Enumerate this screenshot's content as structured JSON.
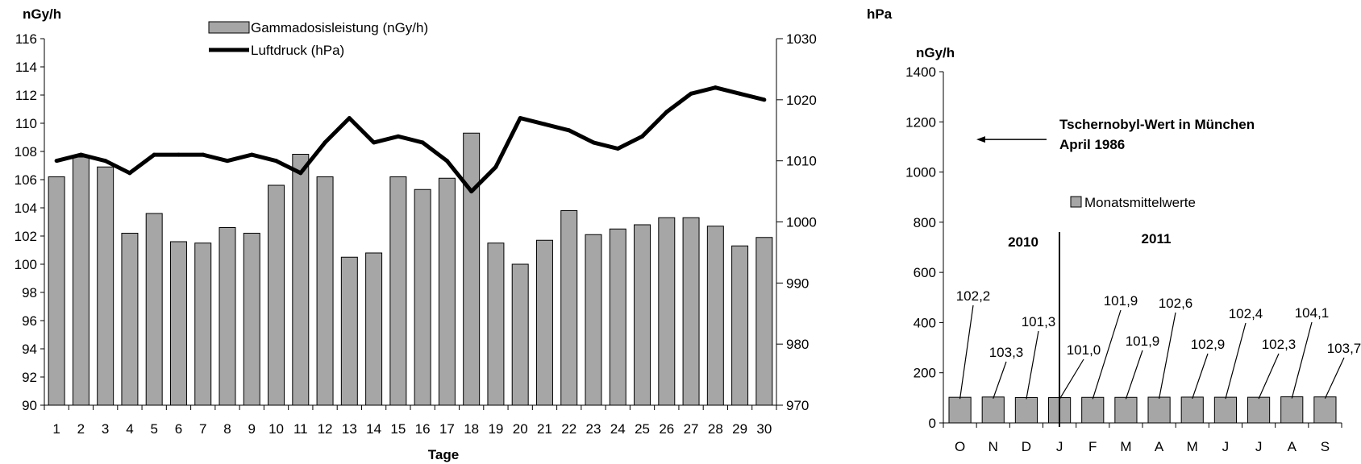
{
  "colors": {
    "bar": "#a6a6a6",
    "bar_stroke": "#000000",
    "line": "#000000"
  },
  "chart_data": [
    {
      "type": "bar+line",
      "xlabel": "Tage",
      "ylabel_left": "nGy/h",
      "ylabel_right": "hPa",
      "ylim_left": [
        90,
        116
      ],
      "ylim_right": [
        970,
        1030
      ],
      "yticks_left": [
        "90",
        "92",
        "94",
        "96",
        "98",
        "100",
        "102",
        "104",
        "106",
        "108",
        "110",
        "112",
        "114",
        "116"
      ],
      "yticks_right": [
        "970",
        "980",
        "990",
        "1000",
        "1010",
        "1020",
        "1030"
      ],
      "legend": [
        "Gammadosisleistung (nGy/h)",
        "Luftdruck (hPa)"
      ],
      "legend_position": "top-center",
      "categories": [
        "1",
        "2",
        "3",
        "4",
        "5",
        "6",
        "7",
        "8",
        "9",
        "10",
        "11",
        "12",
        "13",
        "14",
        "15",
        "16",
        "17",
        "18",
        "19",
        "20",
        "21",
        "22",
        "23",
        "24",
        "25",
        "26",
        "27",
        "28",
        "29",
        "30"
      ],
      "series": [
        {
          "name": "Gammadosisleistung (nGy/h)",
          "kind": "bar",
          "axis": "left",
          "values": [
            106.2,
            107.6,
            106.9,
            102.2,
            103.6,
            101.6,
            101.5,
            102.6,
            102.2,
            105.6,
            107.8,
            106.2,
            100.5,
            100.8,
            106.2,
            105.3,
            106.1,
            109.3,
            101.5,
            100.0,
            101.7,
            103.8,
            102.1,
            102.5,
            102.8,
            103.3,
            103.3,
            102.7,
            101.3,
            101.9
          ]
        },
        {
          "name": "Luftdruck (hPa)",
          "kind": "line",
          "axis": "right",
          "values": [
            1010,
            1011,
            1010,
            1008,
            1011,
            1011,
            1011,
            1010,
            1011,
            1010,
            1008,
            1013,
            1017,
            1013,
            1014,
            1013,
            1010,
            1005,
            1009,
            1017,
            1016,
            1015,
            1013,
            1012,
            1014,
            1018,
            1021,
            1022,
            1021,
            1020
          ]
        }
      ]
    },
    {
      "type": "bar",
      "ylabel": "nGy/h",
      "ylim": [
        0,
        1400
      ],
      "yticks": [
        "0",
        "200",
        "400",
        "600",
        "800",
        "1000",
        "1200",
        "1400"
      ],
      "categories": [
        "O",
        "N",
        "D",
        "J",
        "F",
        "M",
        "A",
        "M",
        "J",
        "J",
        "A",
        "S"
      ],
      "values": [
        102.2,
        103.3,
        101.3,
        101.0,
        101.9,
        101.9,
        102.6,
        102.9,
        102.4,
        102.3,
        104.1,
        103.7
      ],
      "data_labels": [
        "102,2",
        "103,3",
        "101,3",
        "101,0",
        "101,9",
        "101,9",
        "102,6",
        "102,9",
        "102,4",
        "102,3",
        "104,1",
        "103,7"
      ],
      "legend": [
        "Monatsmittelwerte"
      ],
      "year_labels": [
        "2010",
        "2011"
      ],
      "annotation": [
        "Tschernobyl-Wert in München",
        "April 1986"
      ],
      "annotation_value": 1130
    }
  ]
}
